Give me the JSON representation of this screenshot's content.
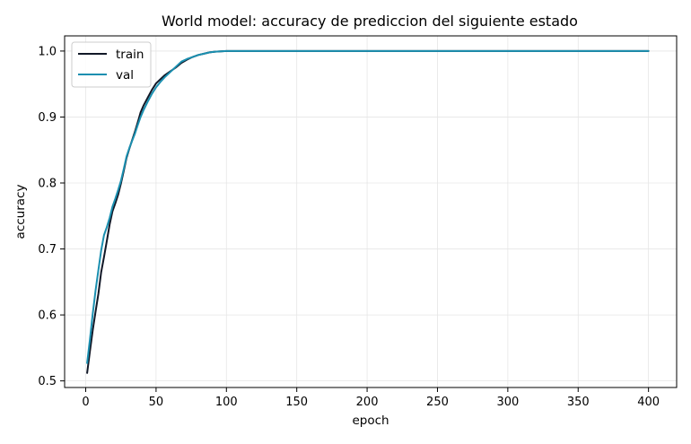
{
  "chart_data": {
    "type": "line",
    "title": "World model: accuracy de prediccion del siguiente estado",
    "xlabel": "epoch",
    "ylabel": "accuracy",
    "xlim": [
      -15,
      420
    ],
    "ylim": [
      0.49,
      1.023
    ],
    "xticks": [
      0,
      50,
      100,
      150,
      200,
      250,
      300,
      350,
      400
    ],
    "yticks": [
      0.5,
      0.6,
      0.7,
      0.8,
      0.9,
      1.0
    ],
    "ytick_labels": [
      "0.5",
      "0.6",
      "0.7",
      "0.8",
      "0.9",
      "1.0"
    ],
    "grid": true,
    "legend_position": "upper-left",
    "series": [
      {
        "name": "train",
        "color": "#111827",
        "x": [
          1,
          3,
          5,
          7,
          9,
          11,
          13,
          15,
          17,
          19,
          21,
          23,
          25,
          27,
          29,
          31,
          33,
          35,
          37,
          39,
          41,
          44,
          47,
          50,
          53,
          56,
          60,
          64,
          68,
          72,
          76,
          80,
          84,
          88,
          92,
          96,
          100,
          110,
          150,
          200,
          250,
          300,
          350,
          400
        ],
        "y": [
          0.512,
          0.545,
          0.577,
          0.605,
          0.632,
          0.665,
          0.688,
          0.712,
          0.737,
          0.757,
          0.769,
          0.782,
          0.799,
          0.818,
          0.838,
          0.852,
          0.865,
          0.878,
          0.892,
          0.907,
          0.917,
          0.929,
          0.941,
          0.951,
          0.957,
          0.963,
          0.969,
          0.975,
          0.982,
          0.987,
          0.991,
          0.994,
          0.996,
          0.998,
          0.999,
          0.9995,
          1.0,
          1.0,
          1.0,
          1.0,
          1.0,
          1.0,
          1.0,
          1.0
        ]
      },
      {
        "name": "val",
        "color": "#1a8fb0",
        "x": [
          1,
          3,
          5,
          7,
          9,
          11,
          13,
          15,
          17,
          19,
          21,
          23,
          25,
          27,
          29,
          31,
          33,
          35,
          37,
          39,
          41,
          44,
          47,
          50,
          53,
          56,
          60,
          64,
          68,
          72,
          76,
          80,
          84,
          88,
          92,
          96,
          100,
          110,
          150,
          200,
          250,
          300,
          350,
          400
        ],
        "y": [
          0.527,
          0.563,
          0.602,
          0.637,
          0.668,
          0.698,
          0.721,
          0.733,
          0.747,
          0.764,
          0.776,
          0.789,
          0.803,
          0.821,
          0.84,
          0.853,
          0.864,
          0.875,
          0.888,
          0.9,
          0.91,
          0.923,
          0.935,
          0.945,
          0.953,
          0.96,
          0.968,
          0.976,
          0.984,
          0.988,
          0.991,
          0.994,
          0.996,
          0.998,
          0.999,
          0.9995,
          1.0,
          1.0,
          1.0,
          1.0,
          1.0,
          1.0,
          1.0,
          1.0
        ]
      }
    ]
  }
}
